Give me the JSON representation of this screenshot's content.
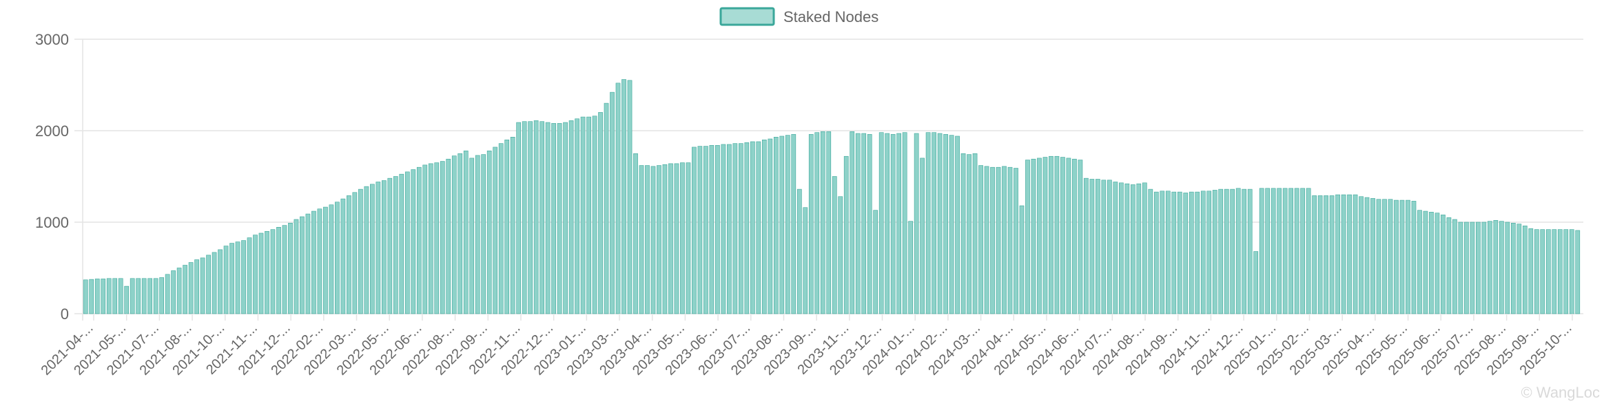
{
  "chart_data": {
    "type": "bar",
    "legend": {
      "label": "Staked Nodes",
      "placement": "top-center",
      "fill_color": "#a8dcd5",
      "border_color": "#3aa79a"
    },
    "bar_fill_color": "#8ed2c9",
    "bar_edge_color": "#3aa79a",
    "grid": true,
    "ylim": [
      0,
      3000
    ],
    "y_ticks": [
      "0",
      "1000",
      "2000",
      "3000"
    ],
    "x_tick_labels": [
      "2021-04-...",
      "2021-05-...",
      "2021-07-...",
      "2021-08-...",
      "2021-10-...",
      "2021-11-...",
      "2021-12-...",
      "2022-02-...",
      "2022-03-...",
      "2022-05-...",
      "2022-06-...",
      "2022-08-...",
      "2022-09-...",
      "2022-11-...",
      "2022-12-...",
      "2023-01-...",
      "2023-03-...",
      "2023-04-...",
      "2023-05-...",
      "2023-06-...",
      "2023-07-...",
      "2023-08-...",
      "2023-09-...",
      "2023-11-...",
      "2023-12-...",
      "2024-01-...",
      "2024-02-...",
      "2024-03-...",
      "2024-04-...",
      "2024-05-...",
      "2024-06-...",
      "2024-07-...",
      "2024-08-...",
      "2024-09-...",
      "2024-11-...",
      "2024-12-...",
      "2025-01-...",
      "2025-02-...",
      "2025-03-...",
      "2025-04-...",
      "2025-05-...",
      "2025-06-...",
      "2025-07-...",
      "2025-08-...",
      "2025-09-...",
      "2025-10-..."
    ],
    "series": [
      {
        "name": "Staked Nodes",
        "values": [
          370,
          375,
          380,
          380,
          385,
          385,
          385,
          300,
          385,
          385,
          385,
          385,
          385,
          395,
          430,
          470,
          500,
          530,
          560,
          590,
          610,
          640,
          670,
          700,
          740,
          770,
          785,
          800,
          830,
          860,
          880,
          900,
          920,
          945,
          965,
          990,
          1030,
          1060,
          1090,
          1120,
          1145,
          1165,
          1190,
          1220,
          1255,
          1290,
          1325,
          1360,
          1390,
          1415,
          1440,
          1455,
          1480,
          1500,
          1525,
          1550,
          1575,
          1600,
          1625,
          1640,
          1650,
          1665,
          1690,
          1725,
          1750,
          1780,
          1700,
          1730,
          1740,
          1780,
          1820,
          1860,
          1900,
          1930,
          2090,
          2100,
          2100,
          2110,
          2100,
          2090,
          2080,
          2080,
          2090,
          2110,
          2130,
          2150,
          2150,
          2160,
          2200,
          2300,
          2420,
          2520,
          2560,
          2550,
          1750,
          1620,
          1620,
          1610,
          1620,
          1630,
          1640,
          1640,
          1650,
          1650,
          1820,
          1830,
          1830,
          1840,
          1840,
          1850,
          1850,
          1860,
          1860,
          1870,
          1880,
          1880,
          1900,
          1910,
          1930,
          1940,
          1950,
          1960,
          1360,
          1160,
          1960,
          1980,
          1990,
          1990,
          1500,
          1280,
          1720,
          1990,
          1970,
          1970,
          1960,
          1130,
          1980,
          1970,
          1960,
          1970,
          1980,
          1010,
          1970,
          1700,
          1980,
          1980,
          1970,
          1960,
          1950,
          1940,
          1750,
          1740,
          1750,
          1620,
          1610,
          1600,
          1600,
          1610,
          1600,
          1590,
          1180,
          1680,
          1690,
          1700,
          1710,
          1720,
          1720,
          1710,
          1700,
          1690,
          1680,
          1480,
          1470,
          1470,
          1460,
          1460,
          1440,
          1430,
          1420,
          1410,
          1420,
          1430,
          1360,
          1330,
          1340,
          1340,
          1330,
          1330,
          1320,
          1330,
          1330,
          1340,
          1340,
          1350,
          1360,
          1360,
          1360,
          1370,
          1360,
          1360,
          680,
          1370,
          1370,
          1370,
          1370,
          1370,
          1370,
          1370,
          1370,
          1370,
          1290,
          1290,
          1290,
          1290,
          1300,
          1300,
          1300,
          1300,
          1280,
          1270,
          1260,
          1250,
          1250,
          1250,
          1240,
          1240,
          1240,
          1230,
          1130,
          1120,
          1110,
          1100,
          1080,
          1050,
          1030,
          1000,
          1000,
          1000,
          1000,
          1000,
          1010,
          1020,
          1010,
          1000,
          990,
          980,
          960,
          930,
          920,
          920,
          920,
          920,
          920,
          920,
          920,
          910
        ]
      }
    ]
  },
  "watermark": "© WangLoc"
}
